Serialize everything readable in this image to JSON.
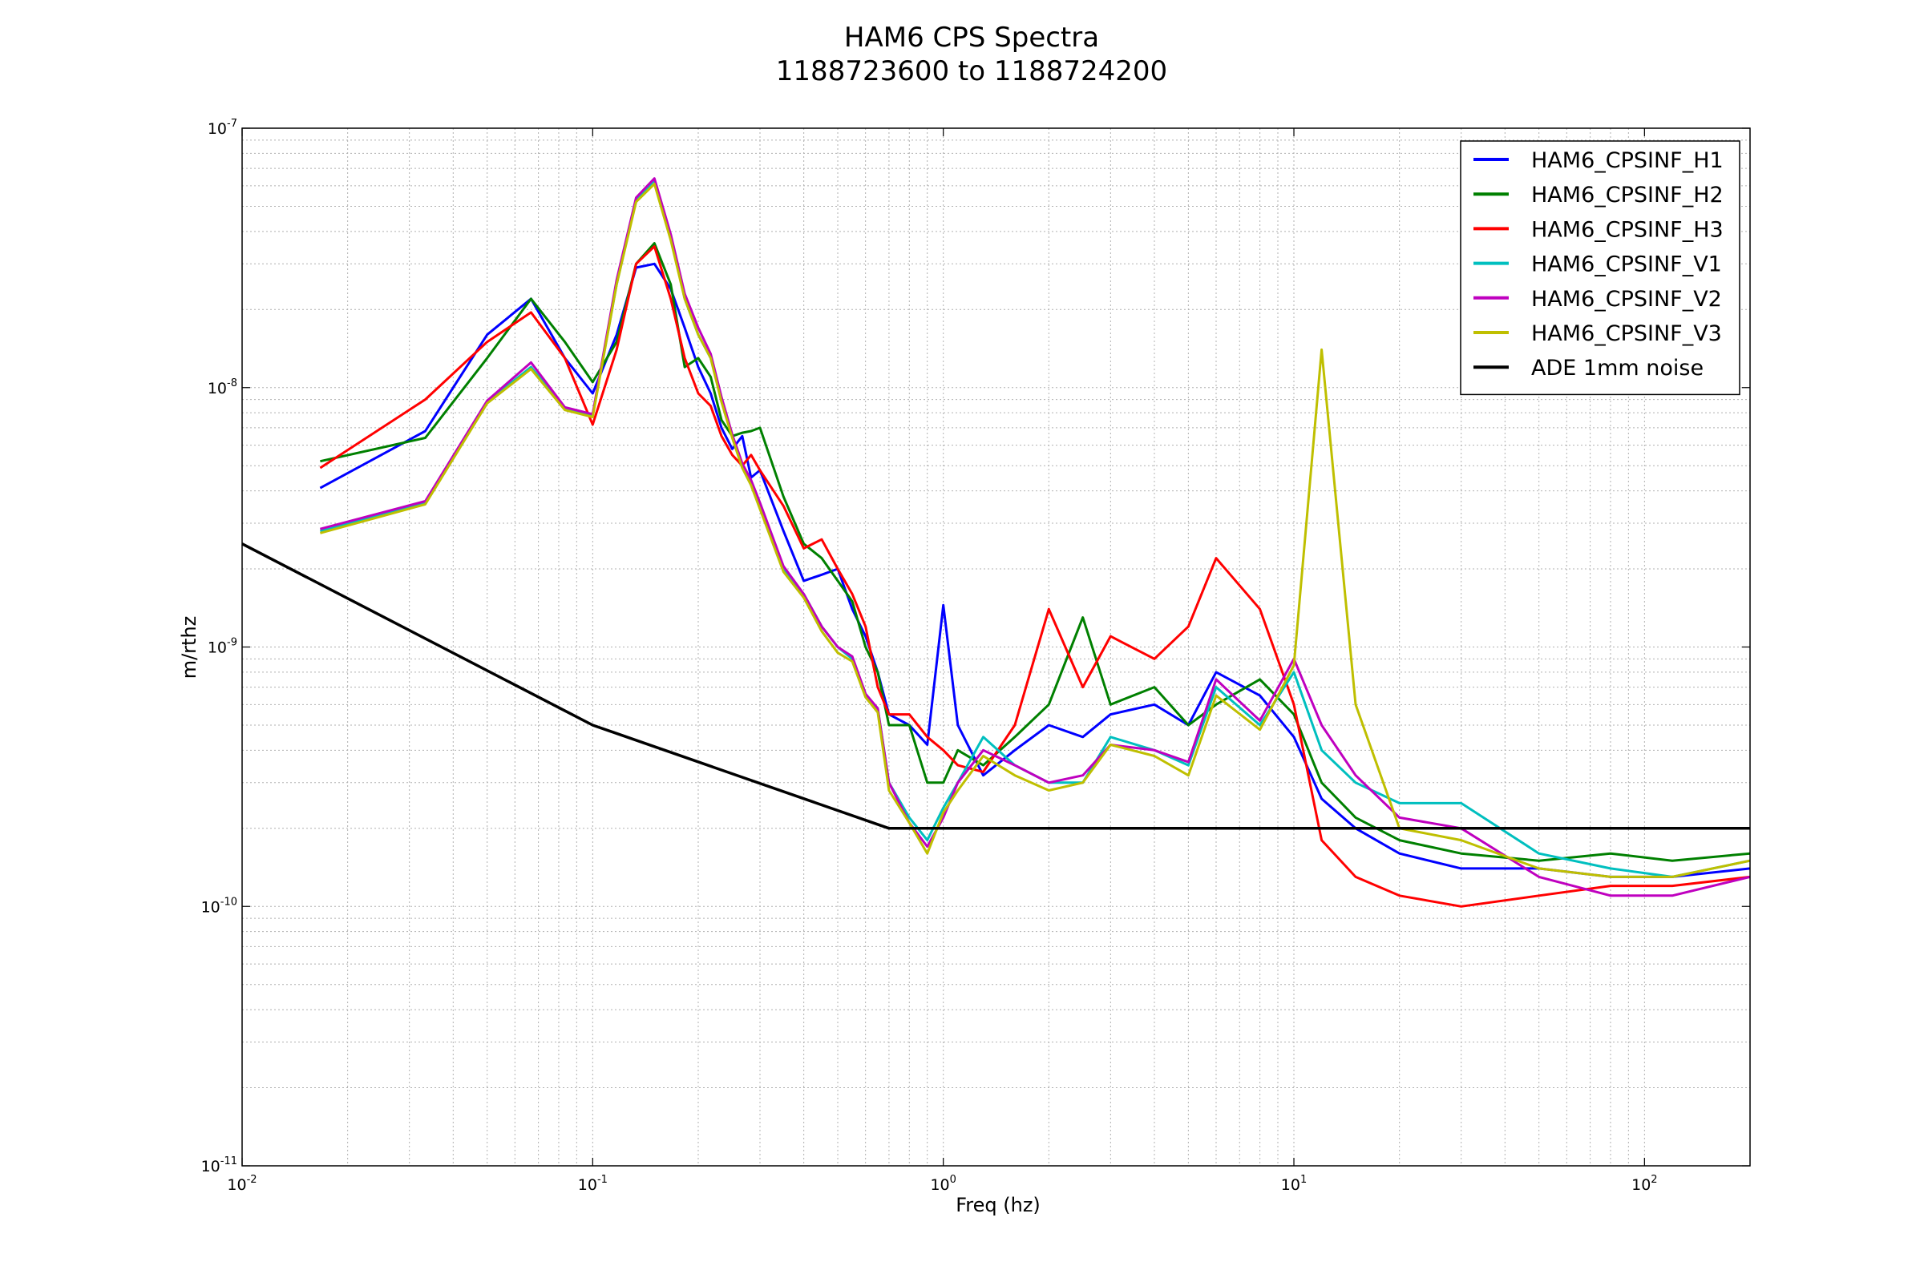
{
  "chart_data": {
    "type": "line",
    "title": "HAM6 CPS Spectra",
    "subtitle": "1188723600 to 1188724200",
    "xlabel": "Freq (hz)",
    "ylabel": "m/rthz",
    "x_scale": "log",
    "y_scale": "log",
    "xlim": [
      0.01,
      200
    ],
    "ylim": [
      1e-11,
      1e-07
    ],
    "grid": true,
    "legend_position": "top-right",
    "x_ticks": [
      {
        "value": 0.01,
        "base": "10",
        "exp": "-2"
      },
      {
        "value": 0.1,
        "base": "10",
        "exp": "-1"
      },
      {
        "value": 1,
        "base": "10",
        "exp": "0"
      },
      {
        "value": 10,
        "base": "10",
        "exp": "1"
      },
      {
        "value": 100,
        "base": "10",
        "exp": "2"
      }
    ],
    "y_ticks": [
      {
        "value": 1e-11,
        "base": "10",
        "exp": "-11"
      },
      {
        "value": 1e-10,
        "base": "10",
        "exp": "-10"
      },
      {
        "value": 1e-09,
        "base": "10",
        "exp": "-9"
      },
      {
        "value": 1e-08,
        "base": "10",
        "exp": "-8"
      },
      {
        "value": 1e-07,
        "base": "10",
        "exp": "-7"
      }
    ],
    "series": [
      {
        "name": "HAM6_CPSINF_H1",
        "color": "#0000ff",
        "x": [
          0.0167,
          0.0333,
          0.05,
          0.0667,
          0.0833,
          0.1,
          0.117,
          0.133,
          0.15,
          0.167,
          0.183,
          0.2,
          0.217,
          0.233,
          0.25,
          0.267,
          0.283,
          0.3,
          0.35,
          0.4,
          0.45,
          0.5,
          0.55,
          0.6,
          0.65,
          0.7,
          0.8,
          0.9,
          1.0,
          1.1,
          1.3,
          1.6,
          2.0,
          2.5,
          3.0,
          4.0,
          5.0,
          6.0,
          8.0,
          10.0,
          12.0,
          15.0,
          20.0,
          30.0,
          50.0,
          80.0,
          120.0,
          200.0
        ],
        "y": [
          4.1e-09,
          6.8e-09,
          1.6e-08,
          2.2e-08,
          1.3e-08,
          9.5e-09,
          1.6e-08,
          2.9e-08,
          3e-08,
          2.4e-08,
          1.7e-08,
          1.2e-08,
          9.5e-09,
          7e-09,
          5.8e-09,
          6.5e-09,
          4.5e-09,
          4.8e-09,
          2.8e-09,
          1.8e-09,
          1.9e-09,
          2e-09,
          1.4e-09,
          1.1e-09,
          8e-10,
          5.5e-10,
          5e-10,
          4.2e-10,
          1.45e-09,
          5e-10,
          3.2e-10,
          4e-10,
          5e-10,
          4.5e-10,
          5.5e-10,
          6e-10,
          5e-10,
          8e-10,
          6.5e-10,
          4.5e-10,
          2.6e-10,
          2e-10,
          1.6e-10,
          1.4e-10,
          1.4e-10,
          1.3e-10,
          1.3e-10,
          1.4e-10
        ]
      },
      {
        "name": "HAM6_CPSINF_H2",
        "color": "#008000",
        "x": [
          0.0167,
          0.0333,
          0.05,
          0.0667,
          0.0833,
          0.1,
          0.117,
          0.133,
          0.15,
          0.167,
          0.183,
          0.2,
          0.217,
          0.233,
          0.25,
          0.267,
          0.283,
          0.3,
          0.35,
          0.4,
          0.45,
          0.5,
          0.55,
          0.6,
          0.65,
          0.7,
          0.8,
          0.9,
          1.0,
          1.1,
          1.3,
          1.6,
          2.0,
          2.5,
          3.0,
          4.0,
          5.0,
          6.0,
          8.0,
          10.0,
          12.0,
          15.0,
          20.0,
          30.0,
          50.0,
          80.0,
          120.0,
          200.0
        ],
        "y": [
          5.2e-09,
          6.4e-09,
          1.3e-08,
          2.2e-08,
          1.5e-08,
          1.05e-08,
          1.5e-08,
          3e-08,
          3.6e-08,
          2.5e-08,
          1.2e-08,
          1.3e-08,
          1.1e-08,
          7.5e-09,
          6.5e-09,
          6.7e-09,
          6.8e-09,
          7e-09,
          3.8e-09,
          2.5e-09,
          2.2e-09,
          1.8e-09,
          1.5e-09,
          1e-09,
          8e-10,
          5e-10,
          5e-10,
          3e-10,
          3e-10,
          4e-10,
          3.5e-10,
          4.5e-10,
          6e-10,
          1.3e-09,
          6e-10,
          7e-10,
          5e-10,
          6e-10,
          7.5e-10,
          5.5e-10,
          3e-10,
          2.2e-10,
          1.8e-10,
          1.6e-10,
          1.5e-10,
          1.6e-10,
          1.5e-10,
          1.6e-10
        ]
      },
      {
        "name": "HAM6_CPSINF_H3",
        "color": "#ff0000",
        "x": [
          0.0167,
          0.0333,
          0.05,
          0.0667,
          0.0833,
          0.1,
          0.117,
          0.133,
          0.15,
          0.167,
          0.183,
          0.2,
          0.217,
          0.233,
          0.25,
          0.267,
          0.283,
          0.3,
          0.35,
          0.4,
          0.45,
          0.5,
          0.55,
          0.6,
          0.65,
          0.7,
          0.8,
          0.9,
          1.0,
          1.1,
          1.3,
          1.6,
          2.0,
          2.5,
          3.0,
          4.0,
          5.0,
          6.0,
          8.0,
          10.0,
          12.0,
          15.0,
          20.0,
          30.0,
          50.0,
          80.0,
          120.0,
          200.0
        ],
        "y": [
          4.9e-09,
          9e-09,
          1.5e-08,
          1.95e-08,
          1.3e-08,
          7.2e-09,
          1.4e-08,
          3e-08,
          3.5e-08,
          2.2e-08,
          1.3e-08,
          9.5e-09,
          8.5e-09,
          6.5e-09,
          5.5e-09,
          5e-09,
          5.5e-09,
          4.8e-09,
          3.5e-09,
          2.4e-09,
          2.6e-09,
          2e-09,
          1.6e-09,
          1.2e-09,
          7e-10,
          5.5e-10,
          5.5e-10,
          4.5e-10,
          4e-10,
          3.5e-10,
          3.3e-10,
          5e-10,
          1.4e-09,
          7e-10,
          1.1e-09,
          9e-10,
          1.2e-09,
          2.2e-09,
          1.4e-09,
          6e-10,
          1.8e-10,
          1.3e-10,
          1.1e-10,
          1e-10,
          1.1e-10,
          1.2e-10,
          1.2e-10,
          1.3e-10
        ]
      },
      {
        "name": "HAM6_CPSINF_V1",
        "color": "#00bfbf",
        "x": [
          0.0167,
          0.0333,
          0.05,
          0.0667,
          0.0833,
          0.1,
          0.117,
          0.133,
          0.15,
          0.167,
          0.183,
          0.2,
          0.217,
          0.233,
          0.25,
          0.267,
          0.283,
          0.3,
          0.35,
          0.4,
          0.45,
          0.5,
          0.55,
          0.6,
          0.65,
          0.7,
          0.8,
          0.9,
          1.0,
          1.1,
          1.3,
          1.6,
          2.0,
          2.5,
          3.0,
          4.0,
          5.0,
          6.0,
          8.0,
          10.0,
          12.0,
          15.0,
          20.0,
          30.0,
          50.0,
          80.0,
          120.0,
          200.0
        ],
        "y": [
          2.8e-09,
          3.6e-09,
          8.8e-09,
          1.2e-08,
          8.3e-09,
          7.8e-09,
          2.5e-08,
          5.3e-08,
          6.3e-08,
          3.8e-08,
          2.2e-08,
          1.6e-08,
          1.3e-08,
          9e-09,
          6.5e-09,
          5e-09,
          4.3e-09,
          3.5e-09,
          2e-09,
          1.6e-09,
          1.2e-09,
          1e-09,
          9e-10,
          6.5e-10,
          5.8e-10,
          3e-10,
          2.2e-10,
          1.8e-10,
          2.4e-10,
          3e-10,
          4.5e-10,
          3.5e-10,
          3e-10,
          3e-10,
          4.5e-10,
          4e-10,
          3.5e-10,
          7e-10,
          5e-10,
          8e-10,
          4e-10,
          3e-10,
          2.5e-10,
          2.5e-10,
          1.6e-10,
          1.4e-10,
          1.3e-10,
          1.5e-10
        ]
      },
      {
        "name": "HAM6_CPSINF_V2",
        "color": "#bf00bf",
        "x": [
          0.0167,
          0.0333,
          0.05,
          0.0667,
          0.0833,
          0.1,
          0.117,
          0.133,
          0.15,
          0.167,
          0.183,
          0.2,
          0.217,
          0.233,
          0.25,
          0.267,
          0.283,
          0.3,
          0.35,
          0.4,
          0.45,
          0.5,
          0.55,
          0.6,
          0.65,
          0.7,
          0.8,
          0.9,
          1.0,
          1.1,
          1.3,
          1.6,
          2.0,
          2.5,
          3.0,
          4.0,
          5.0,
          6.0,
          8.0,
          10.0,
          12.0,
          15.0,
          20.0,
          30.0,
          50.0,
          80.0,
          120.0,
          200.0
        ],
        "y": [
          2.85e-09,
          3.65e-09,
          8.9e-09,
          1.25e-08,
          8.4e-09,
          7.9e-09,
          2.6e-08,
          5.4e-08,
          6.4e-08,
          3.9e-08,
          2.3e-08,
          1.7e-08,
          1.35e-08,
          9.2e-09,
          6.6e-09,
          5.1e-09,
          4.4e-09,
          3.6e-09,
          2.05e-09,
          1.6e-09,
          1.2e-09,
          1e-09,
          9.2e-10,
          6.6e-10,
          5.8e-10,
          3e-10,
          2.1e-10,
          1.7e-10,
          2.2e-10,
          3e-10,
          4e-10,
          3.5e-10,
          3e-10,
          3.2e-10,
          4.2e-10,
          4e-10,
          3.6e-10,
          7.5e-10,
          5.2e-10,
          9e-10,
          5e-10,
          3.2e-10,
          2.2e-10,
          2e-10,
          1.3e-10,
          1.1e-10,
          1.1e-10,
          1.3e-10
        ]
      },
      {
        "name": "HAM6_CPSINF_V3",
        "color": "#bfbf00",
        "x": [
          0.0167,
          0.0333,
          0.05,
          0.0667,
          0.0833,
          0.1,
          0.117,
          0.133,
          0.15,
          0.167,
          0.183,
          0.2,
          0.217,
          0.233,
          0.25,
          0.267,
          0.283,
          0.3,
          0.35,
          0.4,
          0.45,
          0.5,
          0.55,
          0.6,
          0.65,
          0.7,
          0.8,
          0.9,
          1.0,
          1.1,
          1.3,
          1.6,
          2.0,
          2.5,
          3.0,
          4.0,
          5.0,
          6.0,
          8.0,
          10.0,
          12.0,
          15.0,
          20.0,
          30.0,
          50.0,
          80.0,
          120.0,
          200.0
        ],
        "y": [
          2.75e-09,
          3.55e-09,
          8.7e-09,
          1.18e-08,
          8.2e-09,
          7.7e-09,
          2.5e-08,
          5.2e-08,
          6.1e-08,
          3.7e-08,
          2.2e-08,
          1.6e-08,
          1.3e-08,
          8.8e-09,
          6.4e-09,
          4.9e-09,
          4.2e-09,
          3.4e-09,
          1.95e-09,
          1.55e-09,
          1.15e-09,
          9.5e-10,
          8.8e-10,
          6.4e-10,
          5.6e-10,
          2.8e-10,
          2.1e-10,
          1.6e-10,
          2.3e-10,
          2.8e-10,
          3.8e-10,
          3.2e-10,
          2.8e-10,
          3e-10,
          4.2e-10,
          3.8e-10,
          3.2e-10,
          6.5e-10,
          4.8e-10,
          8.5e-10,
          1.4e-08,
          6e-10,
          2e-10,
          1.8e-10,
          1.4e-10,
          1.3e-10,
          1.3e-10,
          1.5e-10
        ]
      },
      {
        "name": "ADE 1mm noise",
        "color": "#000000",
        "x": [
          0.01,
          0.1,
          0.7,
          200
        ],
        "y": [
          2.5e-09,
          5e-10,
          2e-10,
          2e-10
        ]
      }
    ]
  }
}
